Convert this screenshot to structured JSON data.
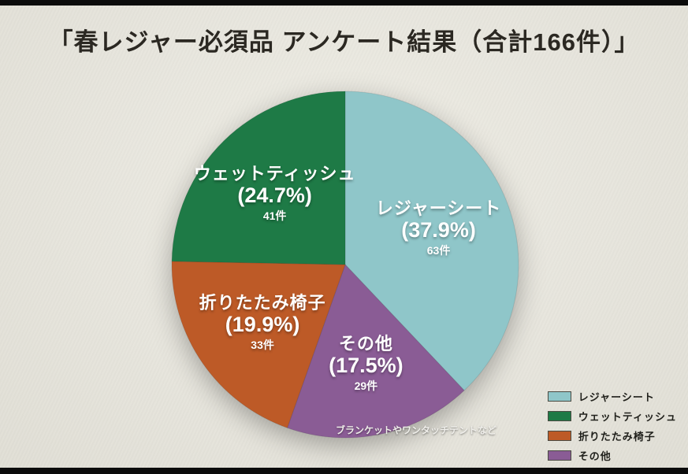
{
  "chart_data": {
    "type": "pie",
    "title": "「春レジャー必須品 アンケート結果（合計166件）」",
    "total": 166,
    "unit": "件",
    "background": "#eae8de",
    "direction": "clockwise",
    "start_angle_deg": 0,
    "legend_position": "bottom-right",
    "slices": [
      {
        "label": "レジャーシート",
        "percent": 37.9,
        "count": 63,
        "color": "#8fc6c9"
      },
      {
        "label": "その他",
        "percent": 17.5,
        "count": 29,
        "color": "#8a5c95",
        "note": "ブランケットやワンタッチテントなど"
      },
      {
        "label": "折りたたみ椅子",
        "percent": 19.9,
        "count": 33,
        "color": "#bd5a27"
      },
      {
        "label": "ウェットティッシュ",
        "percent": 24.7,
        "count": 41,
        "color": "#1e7a46"
      }
    ],
    "legend_order": [
      0,
      3,
      2,
      1
    ]
  }
}
